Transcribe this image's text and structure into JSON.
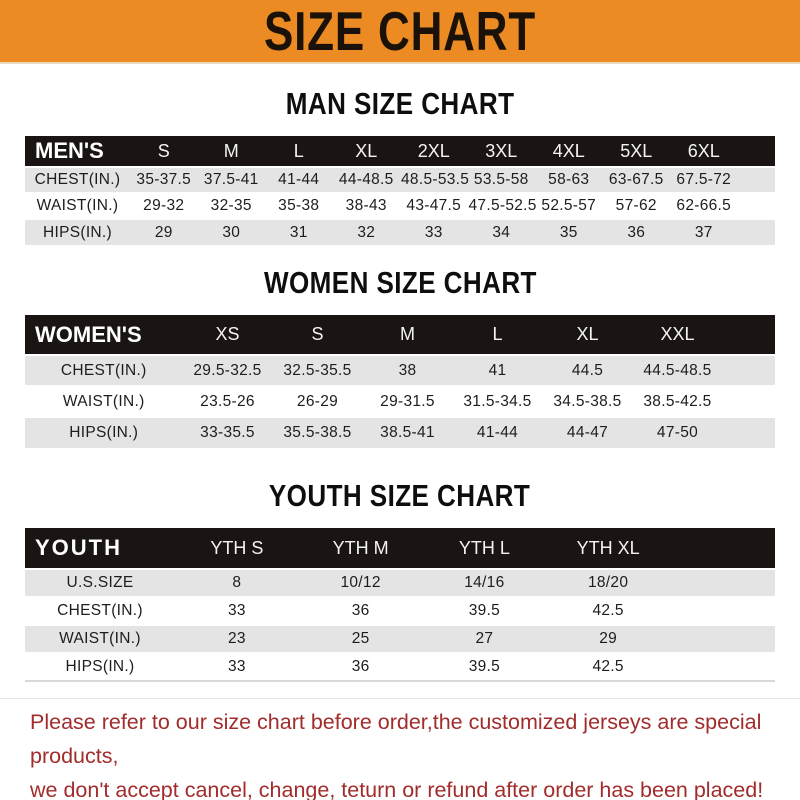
{
  "banner": {
    "title": "SIZE CHART"
  },
  "colors": {
    "banner_bg": "#EC8A23",
    "header_bar_bg": "#1A1512",
    "row_stripe_gray": "#E4E4E4",
    "footer_text_red": "#A22C2C"
  },
  "sections": [
    {
      "heading": "MAN SIZE CHART",
      "table": {
        "label": "MEN'S",
        "sizes": [
          "S",
          "M",
          "L",
          "XL",
          "2XL",
          "3XL",
          "4XL",
          "5XL",
          "6XL"
        ],
        "rows": [
          {
            "label": "CHEST(IN.)",
            "values": [
              "35-37.5",
              "37.5-41",
              "41-44",
              "44-48.5",
              "48.5-53.5",
              "53.5-58",
              "58-63",
              "63-67.5",
              "67.5-72"
            ]
          },
          {
            "label": "WAIST(IN.)",
            "values": [
              "29-32",
              "32-35",
              "35-38",
              "38-43",
              "43-47.5",
              "47.5-52.5",
              "52.5-57",
              "57-62",
              "62-66.5"
            ]
          },
          {
            "label": "HIPS(IN.)",
            "values": [
              "29",
              "30",
              "31",
              "32",
              "33",
              "34",
              "35",
              "36",
              "37"
            ]
          }
        ]
      }
    },
    {
      "heading": "WOMEN SIZE CHART",
      "table": {
        "label": "WOMEN'S",
        "sizes": [
          "XS",
          "S",
          "M",
          "L",
          "XL",
          "XXL"
        ],
        "rows": [
          {
            "label": "CHEST(IN.)",
            "values": [
              "29.5-32.5",
              "32.5-35.5",
              "38",
              "41",
              "44.5",
              "44.5-48.5"
            ]
          },
          {
            "label": "WAIST(IN.)",
            "values": [
              "23.5-26",
              "26-29",
              "29-31.5",
              "31.5-34.5",
              "34.5-38.5",
              "38.5-42.5"
            ]
          },
          {
            "label": "HIPS(IN.)",
            "values": [
              "33-35.5",
              "35.5-38.5",
              "38.5-41",
              "41-44",
              "44-47",
              "47-50"
            ]
          }
        ]
      }
    },
    {
      "heading": "YOUTH SIZE CHART",
      "table": {
        "label": "YOUTH",
        "sizes": [
          "YTH S",
          "YTH M",
          "YTH L",
          "YTH XL"
        ],
        "rows": [
          {
            "label": "U.S.SIZE",
            "values": [
              "8",
              "10/12",
              "14/16",
              "18/20"
            ]
          },
          {
            "label": "CHEST(IN.)",
            "values": [
              "33",
              "36",
              "39.5",
              "42.5"
            ]
          },
          {
            "label": "WAIST(IN.)",
            "values": [
              "23",
              "25",
              "27",
              "29"
            ]
          },
          {
            "label": "HIPS(IN.)",
            "values": [
              "33",
              "36",
              "39.5",
              "42.5"
            ]
          }
        ]
      }
    }
  ],
  "footer": {
    "lines": [
      "Please refer to our size chart before order,the customized jerseys are special products,",
      "we don't accept cancel, change, teturn or refund after order has been placed!"
    ]
  }
}
